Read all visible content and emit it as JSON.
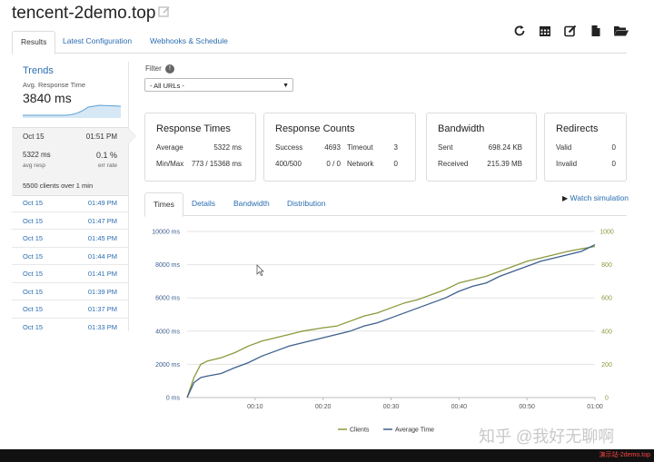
{
  "header": {
    "title": "tencent-2demo.top",
    "edit_icon": "edit-icon"
  },
  "toolbar": {
    "icons": [
      "refresh-icon",
      "calendar-icon",
      "edit-square-icon",
      "document-icon",
      "folder-open-icon"
    ]
  },
  "tabs": [
    {
      "label": "Results",
      "active": true
    },
    {
      "label": "Latest Configuration",
      "active": false
    },
    {
      "label": "Webhooks & Schedule",
      "active": false
    }
  ],
  "sidebar": {
    "trends_title": "Trends",
    "avg_label": "Avg. Response Time",
    "avg_value": "3840 ms",
    "selected": {
      "date": "Oct 15",
      "time": "01:51 PM",
      "resp_value": "5322 ms",
      "resp_label": "avg resp",
      "err_value": "0.1 %",
      "err_label": "err rate",
      "clients": "5500 clients over 1 min"
    },
    "runs": [
      {
        "date": "Oct 15",
        "time": "01:49 PM"
      },
      {
        "date": "Oct 15",
        "time": "01:47 PM"
      },
      {
        "date": "Oct 15",
        "time": "01:45 PM"
      },
      {
        "date": "Oct 15",
        "time": "01:44 PM"
      },
      {
        "date": "Oct 15",
        "time": "01:41 PM"
      },
      {
        "date": "Oct 15",
        "time": "01:39 PM"
      },
      {
        "date": "Oct 15",
        "time": "01:37 PM"
      },
      {
        "date": "Oct 15",
        "time": "01:33 PM"
      }
    ]
  },
  "filter": {
    "label": "Filter",
    "badge": "!",
    "selected": "- All URLs -"
  },
  "cards": {
    "response_times": {
      "title": "Response Times",
      "avg_label": "Average",
      "avg_value": "5322 ms",
      "minmax_label": "Min/Max",
      "minmax_value": "773 / 15368 ms"
    },
    "response_counts": {
      "title": "Response Counts",
      "success_label": "Success",
      "success_value": "4693",
      "timeout_label": "Timeout",
      "timeout_value": "3",
      "status_label": "400/500",
      "status_value": "0 / 0",
      "network_label": "Network",
      "network_value": "0"
    },
    "bandwidth": {
      "title": "Bandwidth",
      "sent_label": "Sent",
      "sent_value": "698.24 KB",
      "received_label": "Received",
      "received_value": "215.39 MB"
    },
    "redirects": {
      "title": "Redirects",
      "valid_label": "Valid",
      "valid_value": "0",
      "invalid_label": "Invalid",
      "invalid_value": "0"
    }
  },
  "chart_tabs": [
    {
      "label": "Times",
      "active": true
    },
    {
      "label": "Details",
      "active": false
    },
    {
      "label": "Bandwidth",
      "active": false
    },
    {
      "label": "Distribution",
      "active": false
    }
  ],
  "watch_simulation": "Watch simulation",
  "chart_data": {
    "type": "line",
    "x_ticks": [
      "00:10",
      "00:20",
      "00:30",
      "00:40",
      "00:50",
      "01:00"
    ],
    "x_tick_values": [
      10,
      20,
      30,
      40,
      50,
      60
    ],
    "xlim": [
      0,
      60
    ],
    "y_left_ticks": [
      "0 ms",
      "2000 ms",
      "4000 ms",
      "6000 ms",
      "8000 ms",
      "10000 ms"
    ],
    "y_left_values": [
      0,
      2000,
      4000,
      6000,
      8000,
      10000
    ],
    "ylim_left": [
      0,
      10000
    ],
    "y_right_ticks": [
      "0",
      "200",
      "400",
      "600",
      "800",
      "1000"
    ],
    "y_right_values": [
      0,
      200,
      400,
      600,
      800,
      1000
    ],
    "ylim_right": [
      0,
      1000
    ],
    "grid": true,
    "legend_position": "bottom",
    "series": [
      {
        "name": "Clients",
        "axis": "right",
        "color": "#8a9a3c",
        "x": [
          0,
          1,
          2,
          3,
          5,
          7,
          9,
          11,
          13,
          15,
          17,
          20,
          22,
          24,
          26,
          28,
          30,
          32,
          34,
          36,
          38,
          40,
          42,
          44,
          46,
          48,
          50,
          52,
          54,
          56,
          58,
          60
        ],
        "y": [
          0,
          120,
          200,
          220,
          240,
          270,
          310,
          340,
          360,
          380,
          400,
          420,
          430,
          460,
          490,
          510,
          540,
          570,
          590,
          620,
          650,
          690,
          710,
          730,
          760,
          790,
          820,
          840,
          860,
          880,
          895,
          910
        ]
      },
      {
        "name": "Average Time",
        "axis": "left",
        "color": "#3d5f8f",
        "x": [
          0,
          1,
          2,
          3,
          5,
          7,
          9,
          11,
          13,
          15,
          17,
          20,
          22,
          24,
          26,
          28,
          30,
          32,
          34,
          36,
          38,
          40,
          42,
          44,
          46,
          48,
          50,
          52,
          54,
          56,
          58,
          60
        ],
        "y": [
          0,
          900,
          1200,
          1300,
          1450,
          1800,
          2100,
          2500,
          2800,
          3100,
          3300,
          3600,
          3800,
          4000,
          4300,
          4500,
          4800,
          5100,
          5400,
          5700,
          6000,
          6400,
          6700,
          6900,
          7300,
          7600,
          7900,
          8200,
          8400,
          8600,
          8800,
          9200
        ]
      }
    ]
  },
  "watermark": "知乎 @我好无聊啊",
  "red_tag": "演示站-2demo.top"
}
